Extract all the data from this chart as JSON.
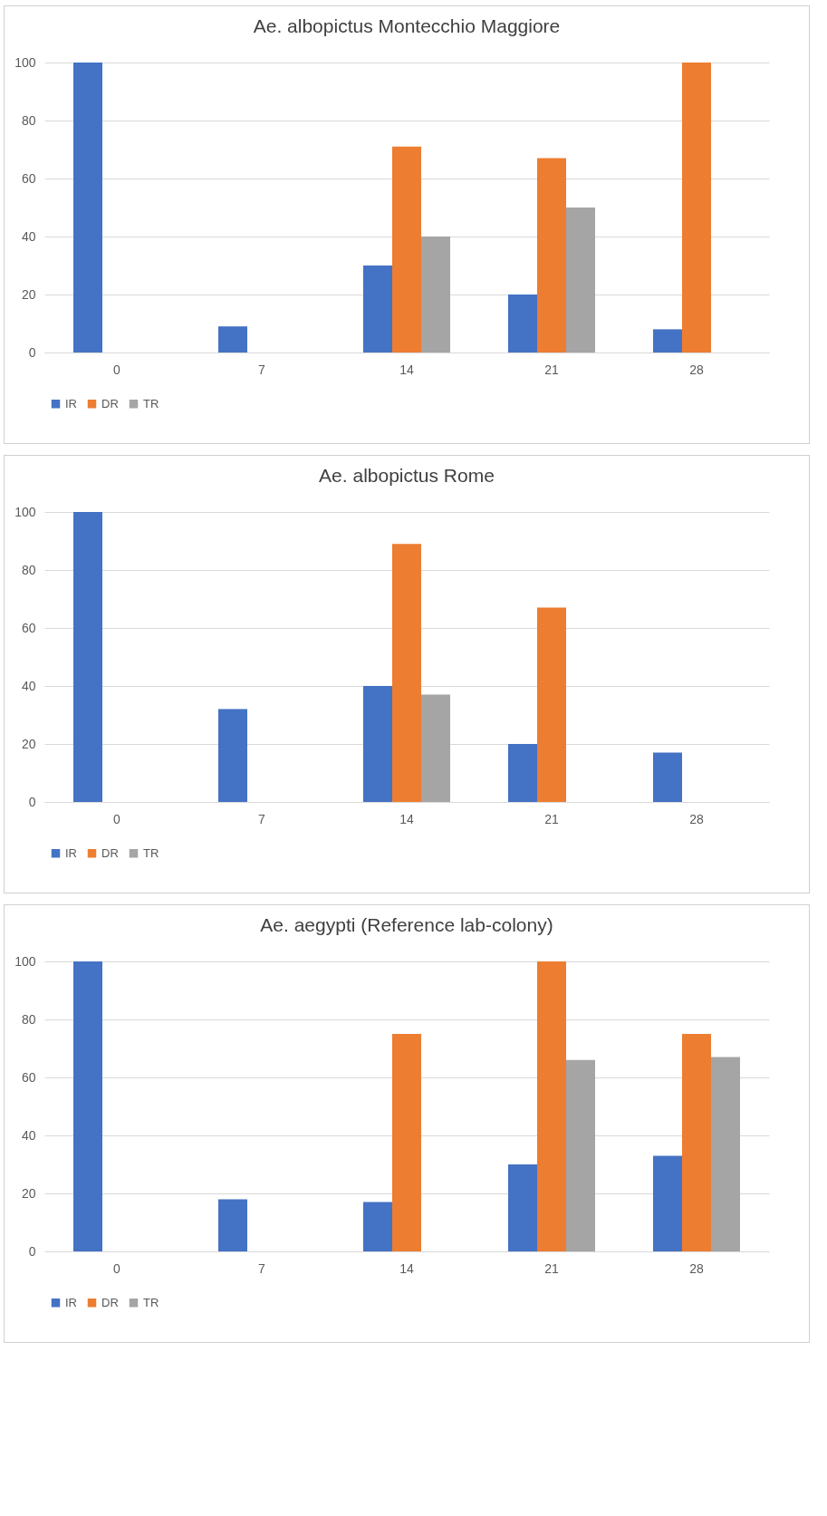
{
  "chart_data": [
    {
      "type": "bar",
      "title": "Ae. albopictus Montecchio Maggiore",
      "categories": [
        "0",
        "7",
        "14",
        "21",
        "28"
      ],
      "series": [
        {
          "name": "IR",
          "color": "#4472c4",
          "values": [
            100,
            9,
            30,
            20,
            8
          ]
        },
        {
          "name": "DR",
          "color": "#ed7d31",
          "values": [
            null,
            null,
            71,
            67,
            100
          ]
        },
        {
          "name": "TR",
          "color": "#a5a5a5",
          "values": [
            null,
            null,
            40,
            50,
            null
          ]
        }
      ],
      "ylim": [
        0,
        100
      ],
      "yticks": [
        0,
        20,
        40,
        60,
        80,
        100
      ],
      "grid": "y",
      "legend": "bottom"
    },
    {
      "type": "bar",
      "title": "Ae. albopictus Rome",
      "categories": [
        "0",
        "7",
        "14",
        "21",
        "28"
      ],
      "series": [
        {
          "name": "IR",
          "color": "#4472c4",
          "values": [
            100,
            32,
            40,
            20,
            17
          ]
        },
        {
          "name": "DR",
          "color": "#ed7d31",
          "values": [
            null,
            null,
            89,
            67,
            null
          ]
        },
        {
          "name": "TR",
          "color": "#a5a5a5",
          "values": [
            null,
            null,
            37,
            null,
            null
          ]
        }
      ],
      "ylim": [
        0,
        100
      ],
      "yticks": [
        0,
        20,
        40,
        60,
        80,
        100
      ],
      "grid": "y",
      "legend": "bottom"
    },
    {
      "type": "bar",
      "title": "Ae. aegypti (Reference lab-colony)",
      "categories": [
        "0",
        "7",
        "14",
        "21",
        "28"
      ],
      "series": [
        {
          "name": "IR",
          "color": "#4472c4",
          "values": [
            100,
            18,
            17,
            30,
            33
          ]
        },
        {
          "name": "DR",
          "color": "#ed7d31",
          "values": [
            null,
            null,
            75,
            100,
            75
          ]
        },
        {
          "name": "TR",
          "color": "#a5a5a5",
          "values": [
            null,
            null,
            null,
            66,
            67
          ]
        }
      ],
      "ylim": [
        0,
        100
      ],
      "yticks": [
        0,
        20,
        40,
        60,
        80,
        100
      ],
      "grid": "y",
      "legend": "bottom"
    }
  ]
}
